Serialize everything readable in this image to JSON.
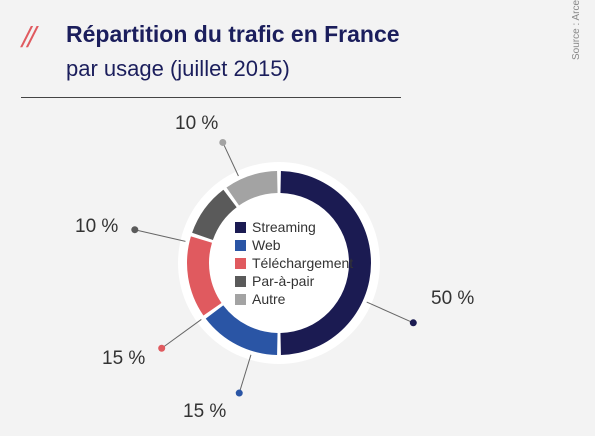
{
  "header": {
    "mark": "//",
    "title": "Répartition du trafic en France",
    "subtitle": "par usage (juillet 2015)",
    "source": "Source : Arcep"
  },
  "chart_data": {
    "type": "pie",
    "style": "donut",
    "categories": [
      "Streaming",
      "Web",
      "Téléchargement",
      "Par-à-pair",
      "Autre"
    ],
    "values": [
      50,
      15,
      15,
      10,
      10
    ],
    "value_labels": [
      "50 %",
      "15 %",
      "15 %",
      "10 %",
      "10 %"
    ],
    "colors": [
      "#1b1b52",
      "#2a55a5",
      "#e05a5f",
      "#5a5a5a",
      "#a3a3a3"
    ],
    "legend_position": "center",
    "title": "Répartition du trafic en France",
    "subtitle": "par usage (juillet 2015)"
  }
}
